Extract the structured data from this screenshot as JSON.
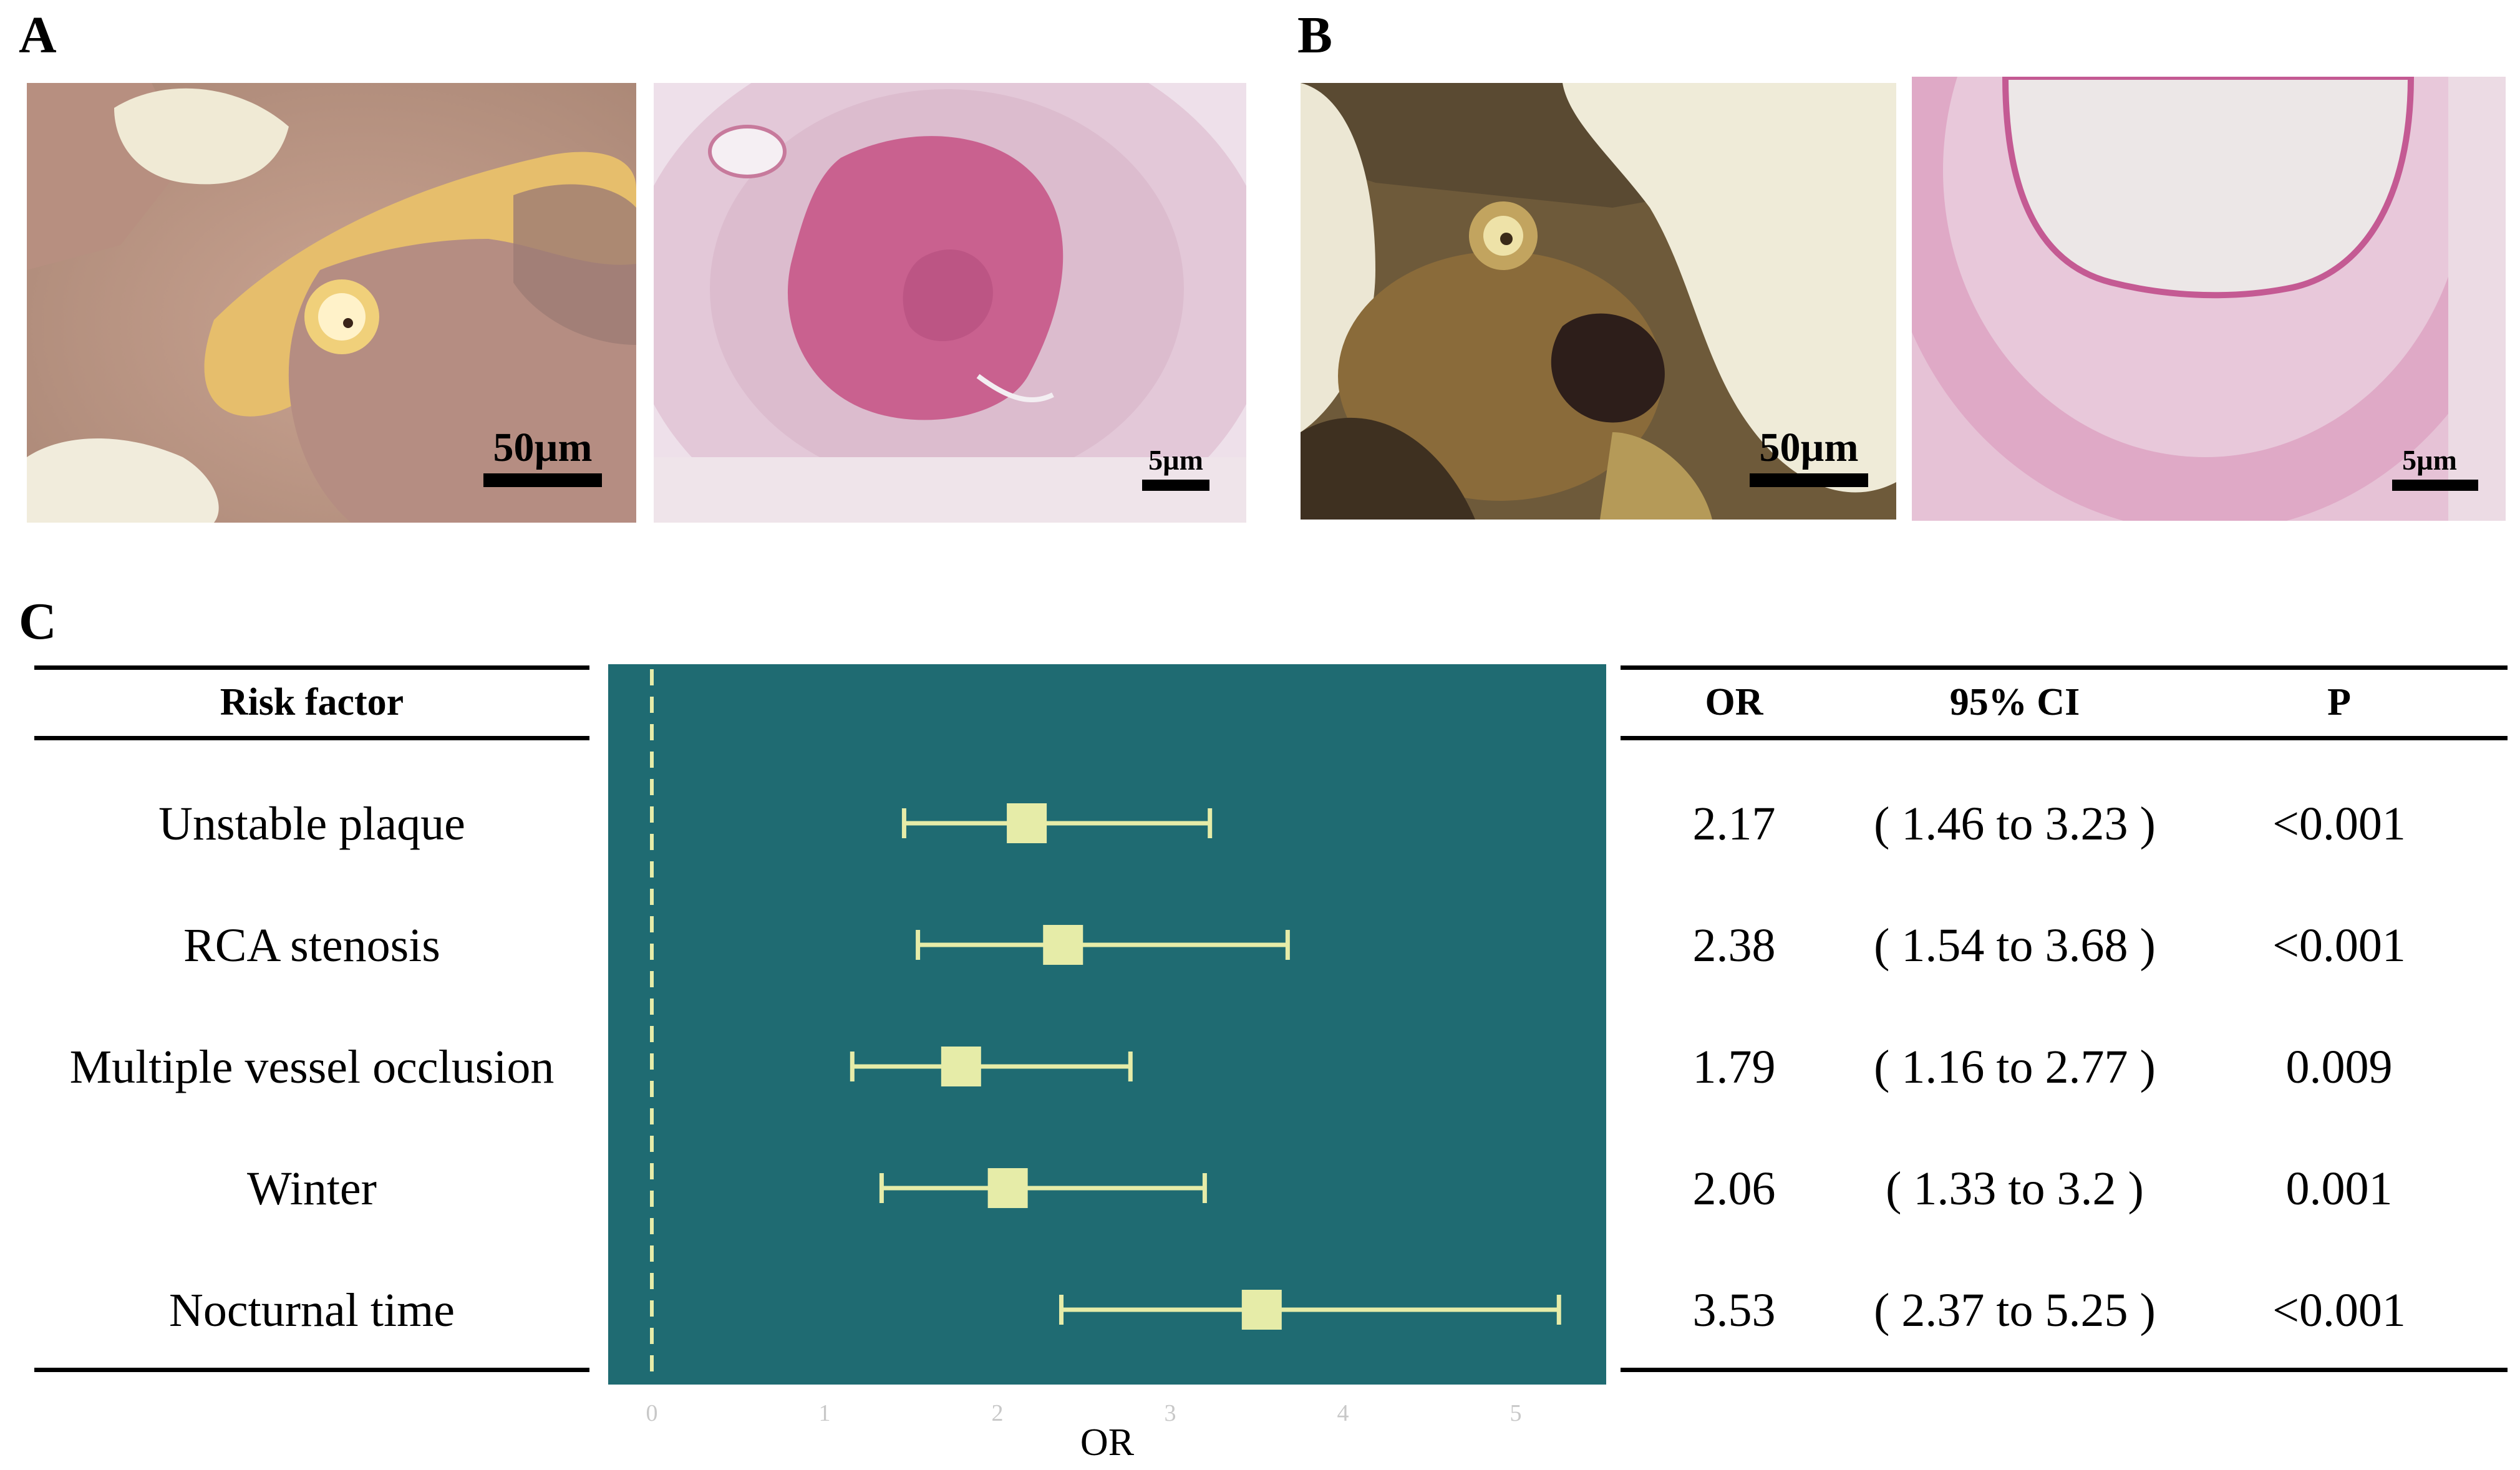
{
  "panels": {
    "a": {
      "letter": "A",
      "gross_scale": "50µm",
      "histo_scale": "5µm"
    },
    "b": {
      "letter": "B",
      "gross_scale": "50µm",
      "histo_scale": "5µm"
    },
    "c": {
      "letter": "C"
    }
  },
  "table": {
    "headers": {
      "risk_factor": "Risk factor",
      "or": "OR",
      "ci": "95% CI",
      "p": "P"
    },
    "rows": [
      {
        "factor": "Unstable plaque",
        "or": "2.17",
        "ci": "( 1.46 to 3.23 )",
        "p": "<0.001"
      },
      {
        "factor": "RCA stenosis",
        "or": "2.38",
        "ci": "( 1.54 to 3.68 )",
        "p": "<0.001"
      },
      {
        "factor": "Multiple vessel occlusion",
        "or": "1.79",
        "ci": "( 1.16 to 2.77 )",
        "p": "0.009"
      },
      {
        "factor": "Winter",
        "or": "2.06",
        "ci": "( 1.33 to 3.2 )",
        "p": "0.001"
      },
      {
        "factor": "Nocturnal time",
        "or": "3.53",
        "ci": "( 2.37 to 5.25 )",
        "p": "<0.001"
      }
    ]
  },
  "chart_data": {
    "type": "scatter",
    "subtype": "forest-plot",
    "title": "",
    "xlabel": "OR",
    "ylabel": "",
    "xlim": [
      -0.25,
      5.5
    ],
    "xticks": [
      0,
      1,
      2,
      3,
      4,
      5
    ],
    "reference_line": 0,
    "categories": [
      "Unstable plaque",
      "RCA stenosis",
      "Multiple vessel occlusion",
      "Winter",
      "Nocturnal time"
    ],
    "series": [
      {
        "name": "OR",
        "values": [
          2.17,
          2.38,
          1.79,
          2.06,
          3.53
        ],
        "lower": [
          1.46,
          1.54,
          1.16,
          1.33,
          2.37
        ],
        "upper": [
          3.23,
          3.68,
          2.77,
          3.2,
          5.25
        ]
      }
    ],
    "colors": {
      "background": "#1f6b72",
      "marker": "#e6eca8",
      "reference": "#e6eca8",
      "tick": "#c8c8c8"
    }
  }
}
